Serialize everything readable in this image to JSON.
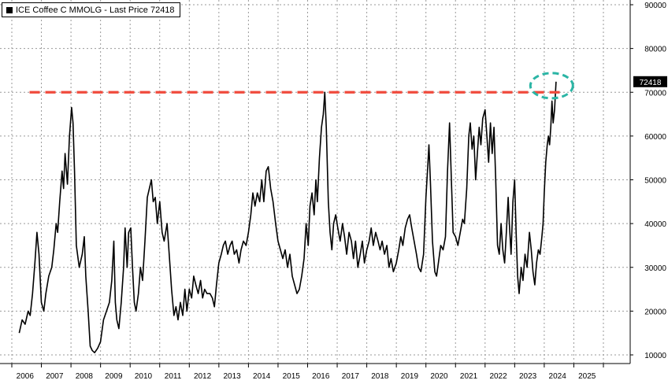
{
  "legend": {
    "label": "ICE Coffee C MMOLG - Last Price 72418"
  },
  "colors": {
    "series": "#000000",
    "grid": "#9a9a9a",
    "reference_line": "#f04a3c",
    "highlight": "#2bb5a5"
  },
  "chart_data": {
    "type": "line",
    "title": "",
    "xlabel": "",
    "ylabel": "",
    "xlim": [
      2006.0,
      2026.0
    ],
    "ylim": [
      10000,
      90000
    ],
    "y_ticks": [
      10000,
      20000,
      30000,
      40000,
      50000,
      60000,
      70000,
      80000,
      90000
    ],
    "x_tick_labels": [
      "2006",
      "2007",
      "2008",
      "2009",
      "2010",
      "2011",
      "2012",
      "2013",
      "2014",
      "2015",
      "2016",
      "2017",
      "2018",
      "2019",
      "2020",
      "2021",
      "2022",
      "2023",
      "2024",
      "2025"
    ],
    "grid": true,
    "last_value": 72418,
    "last_value_label": "72418",
    "reference_line": {
      "y": 70000,
      "x_start": 2006.6,
      "x_end": 2024.6,
      "style": "dashed"
    },
    "highlight": {
      "x": 2024.25,
      "y": 71500,
      "shape": "dashed-ellipse"
    },
    "series": [
      {
        "name": "ICE Coffee C MMOLG",
        "points": [
          [
            2006.25,
            15000
          ],
          [
            2006.35,
            18000
          ],
          [
            2006.45,
            17000
          ],
          [
            2006.55,
            20000
          ],
          [
            2006.62,
            19000
          ],
          [
            2006.7,
            24000
          ],
          [
            2006.78,
            31000
          ],
          [
            2006.85,
            38000
          ],
          [
            2006.92,
            33000
          ],
          [
            2007.0,
            22000
          ],
          [
            2007.08,
            20000
          ],
          [
            2007.15,
            24000
          ],
          [
            2007.25,
            28000
          ],
          [
            2007.35,
            30000
          ],
          [
            2007.42,
            34000
          ],
          [
            2007.5,
            40000
          ],
          [
            2007.55,
            38000
          ],
          [
            2007.62,
            45000
          ],
          [
            2007.7,
            52000
          ],
          [
            2007.75,
            48000
          ],
          [
            2007.8,
            56000
          ],
          [
            2007.88,
            49000
          ],
          [
            2007.95,
            60000
          ],
          [
            2008.02,
            66500
          ],
          [
            2008.07,
            63000
          ],
          [
            2008.12,
            52000
          ],
          [
            2008.18,
            35000
          ],
          [
            2008.28,
            30000
          ],
          [
            2008.38,
            33000
          ],
          [
            2008.45,
            37000
          ],
          [
            2008.5,
            28000
          ],
          [
            2008.58,
            20000
          ],
          [
            2008.65,
            12000
          ],
          [
            2008.72,
            11000
          ],
          [
            2008.8,
            10500
          ],
          [
            2008.9,
            11500
          ],
          [
            2009.0,
            13000
          ],
          [
            2009.1,
            18000
          ],
          [
            2009.2,
            20000
          ],
          [
            2009.3,
            22000
          ],
          [
            2009.38,
            27000
          ],
          [
            2009.45,
            36000
          ],
          [
            2009.5,
            22000
          ],
          [
            2009.55,
            18000
          ],
          [
            2009.62,
            16000
          ],
          [
            2009.7,
            22000
          ],
          [
            2009.78,
            30000
          ],
          [
            2009.83,
            39000
          ],
          [
            2009.9,
            30000
          ],
          [
            2009.95,
            38000
          ],
          [
            2010.02,
            39000
          ],
          [
            2010.08,
            30000
          ],
          [
            2010.14,
            22000
          ],
          [
            2010.2,
            20000
          ],
          [
            2010.28,
            24000
          ],
          [
            2010.35,
            30000
          ],
          [
            2010.42,
            27000
          ],
          [
            2010.5,
            36000
          ],
          [
            2010.58,
            46000
          ],
          [
            2010.65,
            48000
          ],
          [
            2010.72,
            50000
          ],
          [
            2010.78,
            45000
          ],
          [
            2010.85,
            46000
          ],
          [
            2010.92,
            40000
          ],
          [
            2011.0,
            45000
          ],
          [
            2011.08,
            38000
          ],
          [
            2011.15,
            36000
          ],
          [
            2011.25,
            40000
          ],
          [
            2011.32,
            33000
          ],
          [
            2011.4,
            25000
          ],
          [
            2011.48,
            19000
          ],
          [
            2011.55,
            21000
          ],
          [
            2011.62,
            18000
          ],
          [
            2011.7,
            22000
          ],
          [
            2011.78,
            19000
          ],
          [
            2011.85,
            25000
          ],
          [
            2011.92,
            20000
          ],
          [
            2012.0,
            25000
          ],
          [
            2012.08,
            23000
          ],
          [
            2012.15,
            28000
          ],
          [
            2012.22,
            26000
          ],
          [
            2012.3,
            24000
          ],
          [
            2012.38,
            27000
          ],
          [
            2012.45,
            23000
          ],
          [
            2012.52,
            25000
          ],
          [
            2012.6,
            24000
          ],
          [
            2012.7,
            24000
          ],
          [
            2012.78,
            23000
          ],
          [
            2012.85,
            21000
          ],
          [
            2012.92,
            26000
          ],
          [
            2013.0,
            31000
          ],
          [
            2013.08,
            33000
          ],
          [
            2013.15,
            35000
          ],
          [
            2013.22,
            36000
          ],
          [
            2013.3,
            33000
          ],
          [
            2013.38,
            35000
          ],
          [
            2013.45,
            36000
          ],
          [
            2013.52,
            33000
          ],
          [
            2013.6,
            34000
          ],
          [
            2013.68,
            31000
          ],
          [
            2013.75,
            34000
          ],
          [
            2013.83,
            36000
          ],
          [
            2013.92,
            35000
          ],
          [
            2014.0,
            38000
          ],
          [
            2014.08,
            42000
          ],
          [
            2014.15,
            47000
          ],
          [
            2014.22,
            44000
          ],
          [
            2014.3,
            47000
          ],
          [
            2014.38,
            45000
          ],
          [
            2014.45,
            50000
          ],
          [
            2014.52,
            45000
          ],
          [
            2014.6,
            52000
          ],
          [
            2014.67,
            53000
          ],
          [
            2014.75,
            48000
          ],
          [
            2014.83,
            45000
          ],
          [
            2014.92,
            40000
          ],
          [
            2015.0,
            36000
          ],
          [
            2015.08,
            34000
          ],
          [
            2015.16,
            32000
          ],
          [
            2015.24,
            34000
          ],
          [
            2015.32,
            30000
          ],
          [
            2015.4,
            33000
          ],
          [
            2015.48,
            28000
          ],
          [
            2015.56,
            26000
          ],
          [
            2015.64,
            24000
          ],
          [
            2015.72,
            25000
          ],
          [
            2015.8,
            28000
          ],
          [
            2015.88,
            32000
          ],
          [
            2015.95,
            40000
          ],
          [
            2016.02,
            35000
          ],
          [
            2016.08,
            44000
          ],
          [
            2016.15,
            47000
          ],
          [
            2016.22,
            42000
          ],
          [
            2016.28,
            50000
          ],
          [
            2016.33,
            45000
          ],
          [
            2016.4,
            55000
          ],
          [
            2016.47,
            62000
          ],
          [
            2016.53,
            65000
          ],
          [
            2016.58,
            70000
          ],
          [
            2016.63,
            62000
          ],
          [
            2016.7,
            45000
          ],
          [
            2016.76,
            38000
          ],
          [
            2016.82,
            34000
          ],
          [
            2016.88,
            40000
          ],
          [
            2016.95,
            42000
          ],
          [
            2017.02,
            39000
          ],
          [
            2017.1,
            36000
          ],
          [
            2017.18,
            40000
          ],
          [
            2017.25,
            37000
          ],
          [
            2017.32,
            33000
          ],
          [
            2017.4,
            38000
          ],
          [
            2017.48,
            36000
          ],
          [
            2017.55,
            32000
          ],
          [
            2017.62,
            36000
          ],
          [
            2017.7,
            30000
          ],
          [
            2017.78,
            33000
          ],
          [
            2017.85,
            36000
          ],
          [
            2017.92,
            31000
          ],
          [
            2018.0,
            34000
          ],
          [
            2018.08,
            36000
          ],
          [
            2018.15,
            39000
          ],
          [
            2018.22,
            35000
          ],
          [
            2018.3,
            38000
          ],
          [
            2018.38,
            36000
          ],
          [
            2018.45,
            34000
          ],
          [
            2018.52,
            36000
          ],
          [
            2018.6,
            33000
          ],
          [
            2018.68,
            35000
          ],
          [
            2018.75,
            30000
          ],
          [
            2018.82,
            32000
          ],
          [
            2018.9,
            29000
          ],
          [
            2019.0,
            31000
          ],
          [
            2019.08,
            34000
          ],
          [
            2019.15,
            37000
          ],
          [
            2019.22,
            35000
          ],
          [
            2019.3,
            39000
          ],
          [
            2019.38,
            41000
          ],
          [
            2019.45,
            42000
          ],
          [
            2019.52,
            39000
          ],
          [
            2019.6,
            36000
          ],
          [
            2019.68,
            33000
          ],
          [
            2019.75,
            30000
          ],
          [
            2019.83,
            29000
          ],
          [
            2019.92,
            33000
          ],
          [
            2020.0,
            46000
          ],
          [
            2020.06,
            53000
          ],
          [
            2020.1,
            58000
          ],
          [
            2020.15,
            50000
          ],
          [
            2020.22,
            36000
          ],
          [
            2020.3,
            29000
          ],
          [
            2020.36,
            28000
          ],
          [
            2020.42,
            31000
          ],
          [
            2020.5,
            35000
          ],
          [
            2020.58,
            34000
          ],
          [
            2020.66,
            37000
          ],
          [
            2020.73,
            52000
          ],
          [
            2020.8,
            63000
          ],
          [
            2020.86,
            50000
          ],
          [
            2020.92,
            38000
          ],
          [
            2021.0,
            37000
          ],
          [
            2021.08,
            35000
          ],
          [
            2021.16,
            38000
          ],
          [
            2021.24,
            41000
          ],
          [
            2021.3,
            40000
          ],
          [
            2021.38,
            48000
          ],
          [
            2021.45,
            60000
          ],
          [
            2021.5,
            63000
          ],
          [
            2021.56,
            57000
          ],
          [
            2021.62,
            60000
          ],
          [
            2021.68,
            50000
          ],
          [
            2021.74,
            56000
          ],
          [
            2021.8,
            62000
          ],
          [
            2021.86,
            58000
          ],
          [
            2021.92,
            64000
          ],
          [
            2022.0,
            66000
          ],
          [
            2022.06,
            60000
          ],
          [
            2022.12,
            54000
          ],
          [
            2022.18,
            63000
          ],
          [
            2022.24,
            56000
          ],
          [
            2022.3,
            62000
          ],
          [
            2022.36,
            50000
          ],
          [
            2022.42,
            35000
          ],
          [
            2022.48,
            33000
          ],
          [
            2022.54,
            40000
          ],
          [
            2022.6,
            34000
          ],
          [
            2022.66,
            31000
          ],
          [
            2022.72,
            38000
          ],
          [
            2022.78,
            46000
          ],
          [
            2022.82,
            40000
          ],
          [
            2022.88,
            33000
          ],
          [
            2022.94,
            45000
          ],
          [
            2023.0,
            50000
          ],
          [
            2023.05,
            38000
          ],
          [
            2023.1,
            28000
          ],
          [
            2023.15,
            24000
          ],
          [
            2023.22,
            30000
          ],
          [
            2023.28,
            27000
          ],
          [
            2023.35,
            33000
          ],
          [
            2023.42,
            30000
          ],
          [
            2023.5,
            38000
          ],
          [
            2023.56,
            34000
          ],
          [
            2023.62,
            29000
          ],
          [
            2023.68,
            26000
          ],
          [
            2023.74,
            31000
          ],
          [
            2023.8,
            34000
          ],
          [
            2023.86,
            33000
          ],
          [
            2023.92,
            37000
          ],
          [
            2023.96,
            40000
          ],
          [
            2024.0,
            47000
          ],
          [
            2024.05,
            54000
          ],
          [
            2024.1,
            58000
          ],
          [
            2024.14,
            60000
          ],
          [
            2024.18,
            58000
          ],
          [
            2024.22,
            62000
          ],
          [
            2024.26,
            68000
          ],
          [
            2024.3,
            63000
          ],
          [
            2024.35,
            66000
          ],
          [
            2024.4,
            72418
          ]
        ]
      }
    ]
  }
}
